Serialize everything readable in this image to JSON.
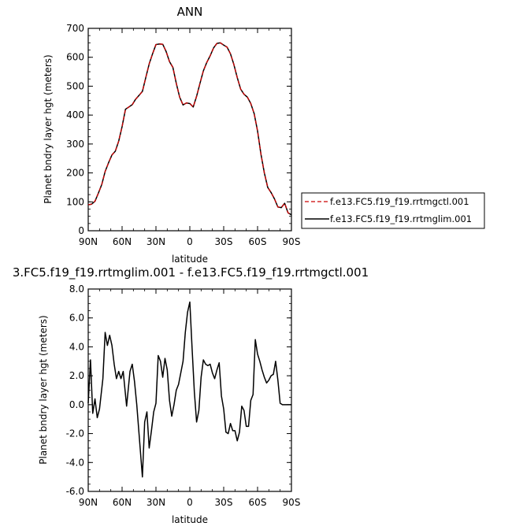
{
  "chart_data": [
    {
      "type": "line",
      "title": "ANN",
      "xlabel": "latitude",
      "ylabel": "Planet bndry layer hgt (meters)",
      "xlim": [
        90,
        -90
      ],
      "ylim": [
        0,
        700
      ],
      "x_tick_labels": [
        "90N",
        "60N",
        "30N",
        "0",
        "30S",
        "60S",
        "90S"
      ],
      "y_tick_labels": [
        "0",
        "100",
        "200",
        "300",
        "400",
        "500",
        "600",
        "700"
      ],
      "legend_placement": "right",
      "series": [
        {
          "name": "f.e13.FC5.f19_f19.rrtmgctl.001",
          "color": "#cc0000",
          "dash": "dashed",
          "x": [
            90,
            87,
            84,
            81,
            78,
            75,
            72,
            69,
            66,
            63,
            60,
            57,
            54,
            51,
            48,
            45,
            42,
            39,
            36,
            33,
            30,
            27,
            24,
            21,
            18,
            15,
            12,
            9,
            6,
            3,
            0,
            -3,
            -6,
            -9,
            -12,
            -15,
            -18,
            -21,
            -24,
            -27,
            -30,
            -33,
            -36,
            -39,
            -42,
            -45,
            -48,
            -51,
            -54,
            -57,
            -60,
            -63,
            -66,
            -69,
            -72,
            -75,
            -78,
            -81,
            -84,
            -87,
            -90
          ],
          "y": [
            90,
            92,
            102,
            130,
            160,
            205,
            235,
            262,
            275,
            310,
            360,
            420,
            428,
            436,
            455,
            468,
            482,
            530,
            577,
            612,
            644,
            646,
            645,
            620,
            585,
            565,
            510,
            462,
            435,
            442,
            440,
            428,
            465,
            510,
            553,
            582,
            605,
            632,
            648,
            650,
            642,
            635,
            612,
            575,
            530,
            490,
            472,
            462,
            440,
            405,
            345,
            265,
            200,
            150,
            132,
            110,
            82,
            80,
            95,
            62,
            55
          ]
        },
        {
          "name": "f.e13.FC5.f19_f19.rrtmglim.001",
          "color": "#000000",
          "dash": "solid",
          "x": [
            90,
            87,
            84,
            81,
            78,
            75,
            72,
            69,
            66,
            63,
            60,
            57,
            54,
            51,
            48,
            45,
            42,
            39,
            36,
            33,
            30,
            27,
            24,
            21,
            18,
            15,
            12,
            9,
            6,
            3,
            0,
            -3,
            -6,
            -9,
            -12,
            -15,
            -18,
            -21,
            -24,
            -27,
            -30,
            -33,
            -36,
            -39,
            -42,
            -45,
            -48,
            -51,
            -54,
            -57,
            -60,
            -63,
            -66,
            -69,
            -72,
            -75,
            -78,
            -81,
            -84,
            -87,
            -90
          ],
          "y": [
            90,
            92,
            102,
            130,
            160,
            205,
            235,
            262,
            275,
            310,
            360,
            420,
            428,
            436,
            455,
            468,
            482,
            530,
            577,
            612,
            644,
            646,
            645,
            620,
            585,
            565,
            510,
            462,
            435,
            442,
            440,
            428,
            465,
            510,
            553,
            582,
            605,
            632,
            648,
            650,
            642,
            635,
            612,
            575,
            530,
            490,
            472,
            462,
            440,
            405,
            345,
            265,
            200,
            150,
            132,
            110,
            82,
            80,
            95,
            62,
            55
          ]
        }
      ]
    },
    {
      "type": "line",
      "title": "3.FC5.f19_f19.rrtmglim.001 - f.e13.FC5.f19_f19.rrtmgctl.001",
      "xlabel": "latitude",
      "ylabel": "Planet bndry layer hgt (meters)",
      "xlim": [
        90,
        -90
      ],
      "ylim": [
        -6,
        8
      ],
      "x_tick_labels": [
        "90N",
        "60N",
        "30N",
        "0",
        "30S",
        "60S",
        "90S"
      ],
      "y_tick_labels": [
        "-6.0",
        "-4.0",
        "-2.0",
        "0.0",
        "2.0",
        "4.0",
        "6.0",
        "8.0"
      ],
      "series": [
        {
          "color": "#000000",
          "dash": "solid",
          "x": [
            90,
            88,
            86,
            84,
            82,
            80,
            77,
            75,
            73,
            71,
            69,
            67,
            65,
            63,
            61,
            59,
            56,
            53,
            51,
            49,
            47,
            45,
            42,
            40,
            38,
            36,
            34,
            32,
            30,
            28,
            26,
            24,
            22,
            20,
            18,
            16,
            14,
            12,
            10,
            8,
            6,
            4,
            2,
            0,
            -2,
            -4,
            -6,
            -8,
            -10,
            -12,
            -14,
            -16,
            -18,
            -20,
            -22,
            -24,
            -26,
            -28,
            -30,
            -32,
            -34,
            -36,
            -38,
            -40,
            -42,
            -44,
            -46,
            -48,
            -50,
            -52,
            -54,
            -56,
            -58,
            -60,
            -62,
            -64,
            -66,
            -68,
            -70,
            -72,
            -74,
            -76,
            -78,
            -80,
            -82,
            -84,
            -86,
            -88,
            -90
          ],
          "y": [
            0.1,
            3.1,
            -0.6,
            0.4,
            -0.9,
            -0.3,
            1.8,
            5.0,
            4.1,
            4.8,
            4.1,
            2.8,
            1.8,
            2.3,
            1.8,
            2.3,
            -0.1,
            2.3,
            2.8,
            1.6,
            0.0,
            -2.0,
            -5.0,
            -1.2,
            -0.5,
            -3.0,
            -1.8,
            -0.5,
            0.1,
            3.4,
            3.0,
            1.9,
            3.2,
            2.4,
            0.3,
            -0.8,
            0.0,
            1.0,
            1.4,
            2.2,
            3.0,
            5.0,
            6.4,
            7.1,
            3.9,
            0.9,
            -1.2,
            -0.4,
            1.9,
            3.1,
            2.8,
            2.7,
            2.8,
            2.2,
            1.8,
            2.4,
            2.9,
            0.6,
            -0.3,
            -1.9,
            -2.0,
            -1.3,
            -1.8,
            -1.8,
            -2.5,
            -1.9,
            -0.1,
            -0.4,
            -1.5,
            -1.5,
            0.3,
            0.7,
            4.5,
            3.5,
            3.0,
            2.4,
            1.9,
            1.5,
            1.7,
            2.0,
            2.1,
            3.0,
            1.7,
            0.1,
            0.0,
            0.0,
            0.0,
            0.0,
            0.0
          ]
        }
      ]
    }
  ]
}
